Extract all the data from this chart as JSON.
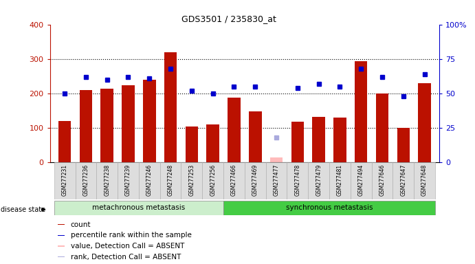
{
  "title": "GDS3501 / 235830_at",
  "samples": [
    "GSM277231",
    "GSM277236",
    "GSM277238",
    "GSM277239",
    "GSM277246",
    "GSM277248",
    "GSM277253",
    "GSM277256",
    "GSM277466",
    "GSM277469",
    "GSM277477",
    "GSM277478",
    "GSM277479",
    "GSM277481",
    "GSM277494",
    "GSM277646",
    "GSM277647",
    "GSM277648"
  ],
  "counts": [
    120,
    210,
    215,
    225,
    240,
    320,
    105,
    110,
    188,
    148,
    15,
    118,
    132,
    130,
    295,
    200,
    100,
    230
  ],
  "percentile_ranks": [
    50,
    62,
    60,
    62,
    61,
    68,
    52,
    50,
    55,
    55,
    18,
    54,
    57,
    55,
    68,
    62,
    48,
    64
  ],
  "absent_value_idx": 10,
  "absent_rank_idx": 10,
  "absent_value": 15,
  "absent_rank": 18,
  "group1_label": "metachronous metastasis",
  "group2_label": "synchronous metastasis",
  "group1_count": 8,
  "group2_count": 10,
  "bar_color": "#bb1100",
  "dot_color": "#0000cc",
  "absent_bar_color": "#ffbbbb",
  "absent_dot_color": "#aaaadd",
  "group1_bg": "#cceecc",
  "group2_bg": "#44cc44",
  "background_plot": "#ffffff",
  "grid_color": "#000000",
  "ylim_left": [
    0,
    400
  ],
  "ylim_right": [
    0,
    100
  ],
  "yticks_left": [
    0,
    100,
    200,
    300,
    400
  ],
  "ytick_labels_right": [
    "0",
    "25",
    "50",
    "75",
    "100%"
  ]
}
